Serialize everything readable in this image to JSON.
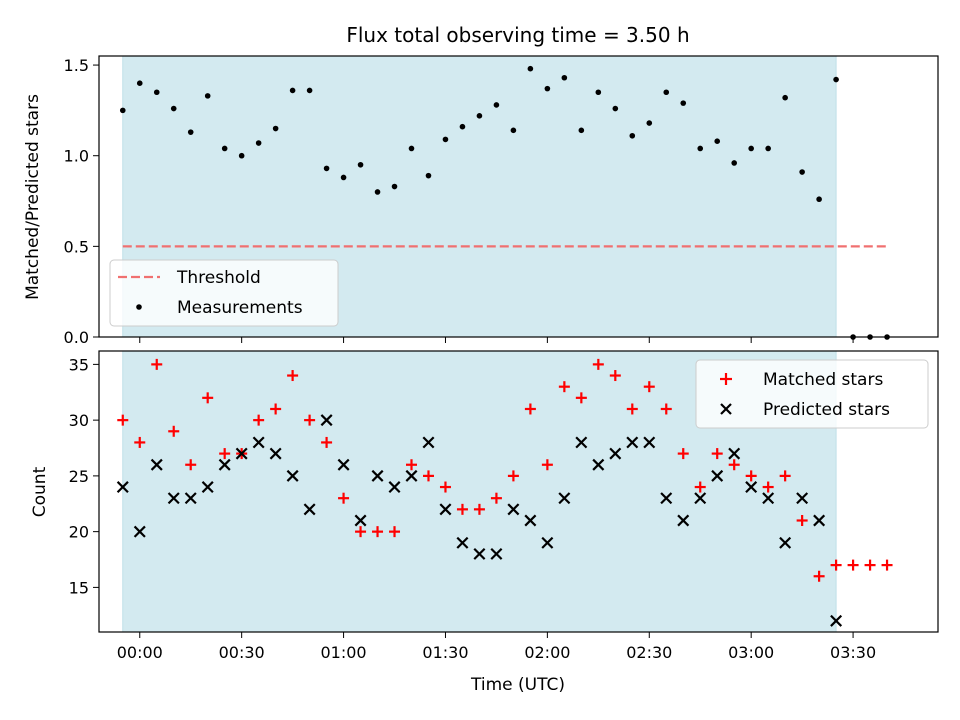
{
  "chart_data": [
    {
      "type": "scatter",
      "title": "Flux total observing time = 3.50 h",
      "ylabel": "Matched/Predicted stars",
      "ylim": [
        0,
        1.55
      ],
      "yticks": [
        "0.0",
        "0.5",
        "1.0",
        "1.5"
      ],
      "shaded_interval": {
        "start": "23:55",
        "end": "03:25",
        "color": "#d3eaf0"
      },
      "legend": {
        "position": "lower-left",
        "entries": [
          "Threshold",
          "Measurements"
        ]
      },
      "threshold": {
        "name": "Threshold",
        "value": 0.5,
        "from": "23:55",
        "to": "03:40",
        "color": "#f07070"
      },
      "series": [
        {
          "name": "Measurements",
          "color": "#000000",
          "points": [
            {
              "x": "23:55",
              "y": 1.25
            },
            {
              "x": "00:00",
              "y": 1.4
            },
            {
              "x": "00:05",
              "y": 1.35
            },
            {
              "x": "00:10",
              "y": 1.26
            },
            {
              "x": "00:15",
              "y": 1.13
            },
            {
              "x": "00:20",
              "y": 1.33
            },
            {
              "x": "00:25",
              "y": 1.04
            },
            {
              "x": "00:30",
              "y": 1.0
            },
            {
              "x": "00:35",
              "y": 1.07
            },
            {
              "x": "00:40",
              "y": 1.15
            },
            {
              "x": "00:45",
              "y": 1.36
            },
            {
              "x": "00:50",
              "y": 1.36
            },
            {
              "x": "00:55",
              "y": 0.93
            },
            {
              "x": "01:00",
              "y": 0.88
            },
            {
              "x": "01:05",
              "y": 0.95
            },
            {
              "x": "01:10",
              "y": 0.8
            },
            {
              "x": "01:15",
              "y": 0.83
            },
            {
              "x": "01:20",
              "y": 1.04
            },
            {
              "x": "01:25",
              "y": 0.89
            },
            {
              "x": "01:30",
              "y": 1.09
            },
            {
              "x": "01:35",
              "y": 1.16
            },
            {
              "x": "01:40",
              "y": 1.22
            },
            {
              "x": "01:45",
              "y": 1.28
            },
            {
              "x": "01:50",
              "y": 1.14
            },
            {
              "x": "01:55",
              "y": 1.48
            },
            {
              "x": "02:00",
              "y": 1.37
            },
            {
              "x": "02:05",
              "y": 1.43
            },
            {
              "x": "02:10",
              "y": 1.14
            },
            {
              "x": "02:15",
              "y": 1.35
            },
            {
              "x": "02:20",
              "y": 1.26
            },
            {
              "x": "02:25",
              "y": 1.11
            },
            {
              "x": "02:30",
              "y": 1.18
            },
            {
              "x": "02:35",
              "y": 1.35
            },
            {
              "x": "02:40",
              "y": 1.29
            },
            {
              "x": "02:45",
              "y": 1.04
            },
            {
              "x": "02:50",
              "y": 1.08
            },
            {
              "x": "02:55",
              "y": 0.96
            },
            {
              "x": "03:00",
              "y": 1.04
            },
            {
              "x": "03:05",
              "y": 1.04
            },
            {
              "x": "03:10",
              "y": 1.32
            },
            {
              "x": "03:15",
              "y": 0.91
            },
            {
              "x": "03:20",
              "y": 0.76
            },
            {
              "x": "03:25",
              "y": 1.42
            },
            {
              "x": "03:30",
              "y": 0.0
            },
            {
              "x": "03:35",
              "y": 0.0
            },
            {
              "x": "03:40",
              "y": 0.0
            }
          ]
        }
      ]
    },
    {
      "type": "scatter",
      "xlabel": "Time (UTC)",
      "ylabel": "Count",
      "ylim": [
        11,
        36.2
      ],
      "yticks": [
        "15",
        "20",
        "25",
        "30",
        "35"
      ],
      "xticks": [
        "00:00",
        "00:30",
        "01:00",
        "01:30",
        "02:00",
        "02:30",
        "03:00",
        "03:30"
      ],
      "xlim": [
        "23:48",
        "03:55"
      ],
      "shaded_interval": {
        "start": "23:55",
        "end": "03:25",
        "color": "#d3eaf0"
      },
      "legend": {
        "position": "top-right",
        "entries": [
          "Matched stars",
          "Predicted stars"
        ]
      },
      "series": [
        {
          "name": "Matched stars",
          "marker": "plus",
          "color": "#ff0000",
          "points": [
            {
              "x": "23:55",
              "y": 30
            },
            {
              "x": "00:00",
              "y": 28
            },
            {
              "x": "00:05",
              "y": 35
            },
            {
              "x": "00:10",
              "y": 29
            },
            {
              "x": "00:15",
              "y": 26
            },
            {
              "x": "00:20",
              "y": 32
            },
            {
              "x": "00:25",
              "y": 27
            },
            {
              "x": "00:30",
              "y": 27
            },
            {
              "x": "00:35",
              "y": 30
            },
            {
              "x": "00:40",
              "y": 31
            },
            {
              "x": "00:45",
              "y": 34
            },
            {
              "x": "00:50",
              "y": 30
            },
            {
              "x": "00:55",
              "y": 28
            },
            {
              "x": "01:00",
              "y": 23
            },
            {
              "x": "01:05",
              "y": 20
            },
            {
              "x": "01:10",
              "y": 20
            },
            {
              "x": "01:15",
              "y": 20
            },
            {
              "x": "01:20",
              "y": 26
            },
            {
              "x": "01:25",
              "y": 25
            },
            {
              "x": "01:30",
              "y": 24
            },
            {
              "x": "01:35",
              "y": 22
            },
            {
              "x": "01:40",
              "y": 22
            },
            {
              "x": "01:45",
              "y": 23
            },
            {
              "x": "01:50",
              "y": 25
            },
            {
              "x": "01:55",
              "y": 31
            },
            {
              "x": "02:00",
              "y": 26
            },
            {
              "x": "02:05",
              "y": 33
            },
            {
              "x": "02:10",
              "y": 32
            },
            {
              "x": "02:15",
              "y": 35
            },
            {
              "x": "02:20",
              "y": 34
            },
            {
              "x": "02:25",
              "y": 31
            },
            {
              "x": "02:30",
              "y": 33
            },
            {
              "x": "02:35",
              "y": 31
            },
            {
              "x": "02:40",
              "y": 27
            },
            {
              "x": "02:45",
              "y": 24
            },
            {
              "x": "02:50",
              "y": 27
            },
            {
              "x": "02:55",
              "y": 26
            },
            {
              "x": "03:00",
              "y": 25
            },
            {
              "x": "03:05",
              "y": 24
            },
            {
              "x": "03:10",
              "y": 25
            },
            {
              "x": "03:15",
              "y": 21
            },
            {
              "x": "03:20",
              "y": 16
            },
            {
              "x": "03:25",
              "y": 17
            },
            {
              "x": "03:30",
              "y": 17
            },
            {
              "x": "03:35",
              "y": 17
            },
            {
              "x": "03:40",
              "y": 17
            }
          ]
        },
        {
          "name": "Predicted stars",
          "marker": "x",
          "color": "#000000",
          "points": [
            {
              "x": "23:55",
              "y": 24
            },
            {
              "x": "00:00",
              "y": 20
            },
            {
              "x": "00:05",
              "y": 26
            },
            {
              "x": "00:10",
              "y": 23
            },
            {
              "x": "00:15",
              "y": 23
            },
            {
              "x": "00:20",
              "y": 24
            },
            {
              "x": "00:25",
              "y": 26
            },
            {
              "x": "00:30",
              "y": 27
            },
            {
              "x": "00:35",
              "y": 28
            },
            {
              "x": "00:40",
              "y": 27
            },
            {
              "x": "00:45",
              "y": 25
            },
            {
              "x": "00:50",
              "y": 22
            },
            {
              "x": "00:55",
              "y": 30
            },
            {
              "x": "01:00",
              "y": 26
            },
            {
              "x": "01:05",
              "y": 21
            },
            {
              "x": "01:10",
              "y": 25
            },
            {
              "x": "01:15",
              "y": 24
            },
            {
              "x": "01:20",
              "y": 25
            },
            {
              "x": "01:25",
              "y": 28
            },
            {
              "x": "01:30",
              "y": 22
            },
            {
              "x": "01:35",
              "y": 19
            },
            {
              "x": "01:40",
              "y": 18
            },
            {
              "x": "01:45",
              "y": 18
            },
            {
              "x": "01:50",
              "y": 22
            },
            {
              "x": "01:55",
              "y": 21
            },
            {
              "x": "02:00",
              "y": 19
            },
            {
              "x": "02:05",
              "y": 23
            },
            {
              "x": "02:10",
              "y": 28
            },
            {
              "x": "02:15",
              "y": 26
            },
            {
              "x": "02:20",
              "y": 27
            },
            {
              "x": "02:25",
              "y": 28
            },
            {
              "x": "02:30",
              "y": 28
            },
            {
              "x": "02:35",
              "y": 23
            },
            {
              "x": "02:40",
              "y": 21
            },
            {
              "x": "02:45",
              "y": 23
            },
            {
              "x": "02:50",
              "y": 25
            },
            {
              "x": "02:55",
              "y": 27
            },
            {
              "x": "03:00",
              "y": 24
            },
            {
              "x": "03:05",
              "y": 23
            },
            {
              "x": "03:10",
              "y": 19
            },
            {
              "x": "03:15",
              "y": 23
            },
            {
              "x": "03:20",
              "y": 21
            },
            {
              "x": "03:25",
              "y": 12
            }
          ]
        }
      ]
    }
  ]
}
